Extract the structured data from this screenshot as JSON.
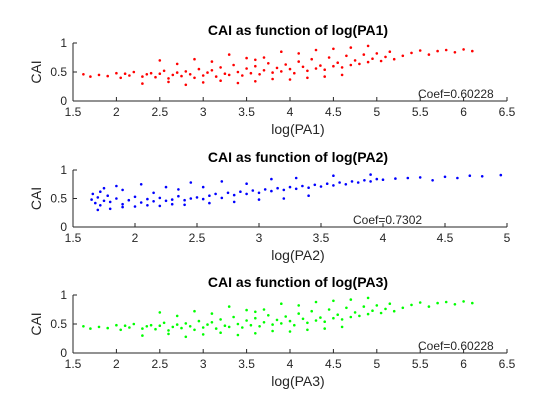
{
  "chart_data": [
    {
      "type": "scatter",
      "title": "CAI as function of log(PA1)",
      "xlabel": "log(PA1)",
      "ylabel": "CAI",
      "xlim": [
        1.5,
        6.5
      ],
      "ylim": [
        0,
        1
      ],
      "xticks": [
        "1.5",
        "2",
        "2.5",
        "3",
        "3.5",
        "4",
        "4.5",
        "5",
        "5.5",
        "6",
        "6.5"
      ],
      "yticks": [
        "0",
        "0.5",
        "1"
      ],
      "color": "#ff0000",
      "annotation": "Coef=0.60228",
      "series": [
        {
          "x": [
            1.62,
            1.7,
            1.8,
            1.9,
            2.0,
            2.05,
            2.1,
            2.15,
            2.2,
            2.3,
            2.35,
            2.4,
            2.45,
            2.5,
            2.55,
            2.6,
            2.65,
            2.7,
            2.75,
            2.8,
            2.85,
            2.9,
            2.95,
            3.0,
            3.05,
            3.1,
            3.15,
            3.2,
            3.25,
            3.3,
            3.35,
            3.4,
            3.45,
            3.5,
            3.55,
            3.6,
            3.65,
            3.7,
            3.75,
            3.8,
            3.85,
            3.9,
            3.95,
            4.0,
            4.05,
            4.1,
            4.15,
            4.2,
            4.25,
            4.3,
            4.35,
            4.4,
            4.45,
            4.5,
            4.55,
            4.6,
            4.65,
            4.7,
            4.75,
            4.8,
            4.85,
            4.9,
            4.95,
            5.0,
            5.05,
            5.1,
            5.15,
            5.2,
            5.3,
            5.4,
            5.5,
            5.6,
            5.7,
            5.8,
            5.9,
            6.0,
            6.1,
            2.3,
            2.6,
            2.8,
            3.0,
            3.2,
            3.4,
            3.6,
            3.8,
            4.0,
            4.2,
            4.4,
            4.6,
            2.5,
            2.9,
            3.3,
            3.7,
            4.1,
            4.5,
            4.9,
            3.1,
            3.5,
            3.9,
            4.3,
            2.7,
            3.6,
            4.7
          ],
          "y": [
            0.46,
            0.42,
            0.45,
            0.43,
            0.48,
            0.4,
            0.47,
            0.44,
            0.5,
            0.42,
            0.46,
            0.48,
            0.41,
            0.47,
            0.52,
            0.39,
            0.45,
            0.49,
            0.43,
            0.51,
            0.46,
            0.4,
            0.55,
            0.44,
            0.49,
            0.53,
            0.42,
            0.58,
            0.47,
            0.45,
            0.62,
            0.5,
            0.44,
            0.56,
            0.48,
            0.6,
            0.46,
            0.53,
            0.65,
            0.49,
            0.57,
            0.51,
            0.63,
            0.55,
            0.48,
            0.68,
            0.59,
            0.52,
            0.72,
            0.56,
            0.61,
            0.54,
            0.75,
            0.6,
            0.66,
            0.58,
            0.78,
            0.62,
            0.7,
            0.64,
            0.8,
            0.67,
            0.73,
            0.82,
            0.69,
            0.76,
            0.85,
            0.72,
            0.78,
            0.83,
            0.87,
            0.8,
            0.86,
            0.88,
            0.84,
            0.89,
            0.86,
            0.3,
            0.33,
            0.28,
            0.32,
            0.35,
            0.31,
            0.34,
            0.38,
            0.37,
            0.4,
            0.42,
            0.45,
            0.7,
            0.72,
            0.8,
            0.75,
            0.82,
            0.9,
            0.95,
            0.68,
            0.74,
            0.85,
            0.88,
            0.64,
            0.71,
            0.92
          ]
        }
      ]
    },
    {
      "type": "scatter",
      "title": "CAI as function of log(PA2)",
      "xlabel": "log(PA2)",
      "ylabel": "CAI",
      "xlim": [
        1.5,
        5
      ],
      "ylim": [
        0,
        1
      ],
      "xticks": [
        "1.5",
        "2",
        "2.5",
        "3",
        "3.5",
        "4",
        "4.5",
        "5"
      ],
      "yticks": [
        "0",
        "0.5",
        "1"
      ],
      "color": "#0000ff",
      "annotation": "Coef=0.7302",
      "series": [
        {
          "x": [
            1.65,
            1.68,
            1.7,
            1.72,
            1.75,
            1.78,
            1.8,
            1.85,
            1.9,
            1.95,
            2.0,
            2.05,
            2.1,
            2.15,
            2.2,
            2.25,
            2.3,
            2.35,
            2.4,
            2.45,
            2.5,
            2.55,
            2.6,
            2.65,
            2.7,
            2.75,
            2.8,
            2.85,
            2.9,
            2.95,
            3.0,
            3.05,
            3.1,
            3.15,
            3.2,
            3.25,
            3.3,
            3.35,
            3.4,
            3.45,
            3.5,
            3.55,
            3.6,
            3.65,
            3.7,
            3.75,
            3.8,
            3.85,
            3.9,
            3.95,
            4.0,
            4.1,
            4.2,
            4.3,
            4.4,
            4.5,
            4.6,
            4.7,
            4.8,
            4.95,
            1.7,
            1.8,
            1.9,
            2.0,
            2.1,
            2.2,
            2.3,
            2.4,
            2.6,
            2.8,
            3.0,
            3.2,
            3.4,
            1.75,
            1.85,
            2.05,
            2.25,
            2.45,
            2.7,
            2.9,
            3.1,
            3.3,
            3.6,
            3.9,
            1.66,
            1.72,
            1.9,
            2.15,
            2.35,
            2.55
          ],
          "y": [
            0.48,
            0.42,
            0.52,
            0.38,
            0.46,
            0.55,
            0.44,
            0.5,
            0.4,
            0.47,
            0.53,
            0.43,
            0.49,
            0.45,
            0.51,
            0.46,
            0.48,
            0.54,
            0.47,
            0.5,
            0.52,
            0.49,
            0.55,
            0.58,
            0.51,
            0.6,
            0.56,
            0.62,
            0.58,
            0.64,
            0.6,
            0.66,
            0.63,
            0.68,
            0.65,
            0.7,
            0.67,
            0.72,
            0.69,
            0.74,
            0.71,
            0.76,
            0.73,
            0.78,
            0.75,
            0.8,
            0.78,
            0.82,
            0.8,
            0.84,
            0.83,
            0.85,
            0.86,
            0.87,
            0.82,
            0.88,
            0.86,
            0.9,
            0.89,
            0.91,
            0.3,
            0.32,
            0.35,
            0.36,
            0.38,
            0.37,
            0.4,
            0.39,
            0.42,
            0.44,
            0.48,
            0.5,
            0.55,
            0.68,
            0.72,
            0.75,
            0.7,
            0.78,
            0.8,
            0.76,
            0.84,
            0.86,
            0.9,
            0.92,
            0.58,
            0.62,
            0.65,
            0.6,
            0.66,
            0.7
          ]
        }
      ]
    },
    {
      "type": "scatter",
      "title": "CAI as function of log(PA3)",
      "xlabel": "log(PA3)",
      "ylabel": "CAI",
      "xlim": [
        1.5,
        6.5
      ],
      "ylim": [
        0,
        1
      ],
      "xticks": [
        "1.5",
        "2",
        "2.5",
        "3",
        "3.5",
        "4",
        "4.5",
        "5",
        "5.5",
        "6",
        "6.5"
      ],
      "yticks": [
        "0",
        "0.5",
        "1"
      ],
      "color": "#00ff00",
      "annotation": "Coef=0.60228",
      "series": [
        {
          "x": [
            1.62,
            1.7,
            1.8,
            1.9,
            2.0,
            2.05,
            2.1,
            2.15,
            2.2,
            2.3,
            2.35,
            2.4,
            2.45,
            2.5,
            2.55,
            2.6,
            2.65,
            2.7,
            2.75,
            2.8,
            2.85,
            2.9,
            2.95,
            3.0,
            3.05,
            3.1,
            3.15,
            3.2,
            3.25,
            3.3,
            3.35,
            3.4,
            3.45,
            3.5,
            3.55,
            3.6,
            3.65,
            3.7,
            3.75,
            3.8,
            3.85,
            3.9,
            3.95,
            4.0,
            4.05,
            4.1,
            4.15,
            4.2,
            4.25,
            4.3,
            4.35,
            4.4,
            4.45,
            4.5,
            4.55,
            4.6,
            4.65,
            4.7,
            4.75,
            4.8,
            4.85,
            4.9,
            4.95,
            5.0,
            5.05,
            5.1,
            5.15,
            5.2,
            5.3,
            5.4,
            5.5,
            5.6,
            5.7,
            5.8,
            5.9,
            6.0,
            6.1,
            2.3,
            2.6,
            2.8,
            3.0,
            3.2,
            3.4,
            3.6,
            3.8,
            4.0,
            4.2,
            4.4,
            4.6,
            2.5,
            2.9,
            3.3,
            3.7,
            4.1,
            4.5,
            4.9,
            3.1,
            3.5,
            3.9,
            4.3,
            2.7,
            3.6,
            4.7
          ],
          "y": [
            0.46,
            0.42,
            0.45,
            0.43,
            0.48,
            0.4,
            0.47,
            0.44,
            0.5,
            0.42,
            0.46,
            0.48,
            0.41,
            0.47,
            0.52,
            0.39,
            0.45,
            0.49,
            0.43,
            0.51,
            0.46,
            0.4,
            0.55,
            0.44,
            0.49,
            0.53,
            0.42,
            0.58,
            0.47,
            0.45,
            0.62,
            0.5,
            0.44,
            0.56,
            0.48,
            0.6,
            0.46,
            0.53,
            0.65,
            0.49,
            0.57,
            0.51,
            0.63,
            0.55,
            0.48,
            0.68,
            0.59,
            0.52,
            0.72,
            0.56,
            0.61,
            0.54,
            0.75,
            0.6,
            0.66,
            0.58,
            0.78,
            0.62,
            0.7,
            0.64,
            0.8,
            0.67,
            0.73,
            0.82,
            0.69,
            0.76,
            0.85,
            0.72,
            0.78,
            0.83,
            0.87,
            0.8,
            0.86,
            0.88,
            0.84,
            0.89,
            0.86,
            0.3,
            0.33,
            0.28,
            0.32,
            0.35,
            0.31,
            0.34,
            0.38,
            0.37,
            0.4,
            0.42,
            0.45,
            0.7,
            0.72,
            0.8,
            0.75,
            0.82,
            0.9,
            0.95,
            0.68,
            0.74,
            0.85,
            0.88,
            0.64,
            0.71,
            0.92
          ]
        }
      ]
    }
  ]
}
